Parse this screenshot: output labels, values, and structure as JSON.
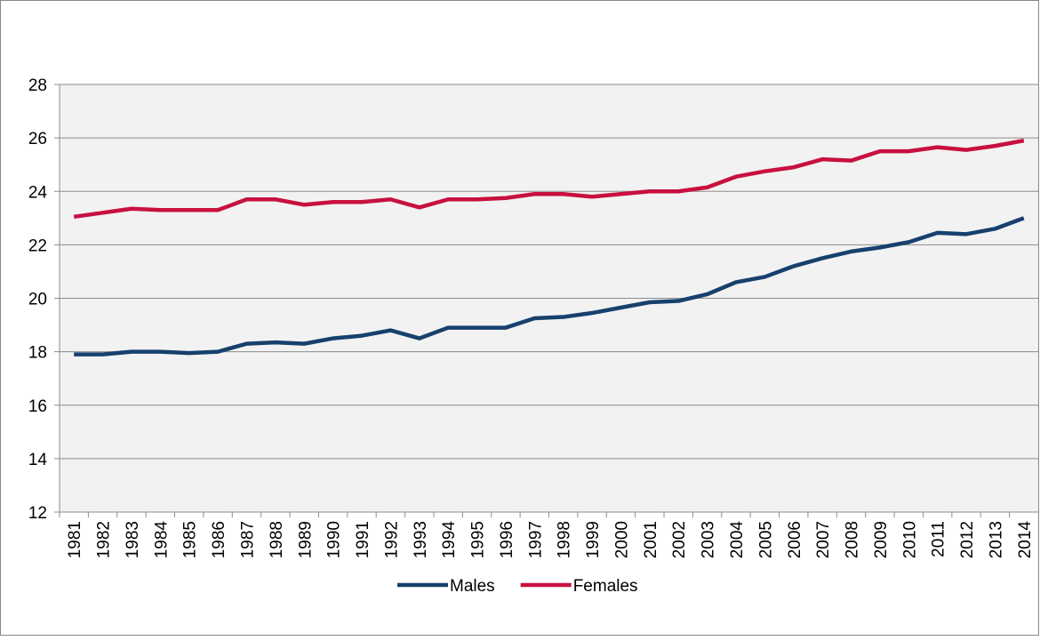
{
  "chart_data": {
    "type": "line",
    "categories": [
      "1981",
      "1982",
      "1983",
      "1984",
      "1985",
      "1986",
      "1987",
      "1988",
      "1989",
      "1990",
      "1991",
      "1992",
      "1993",
      "1994",
      "1995",
      "1996",
      "1997",
      "1998",
      "1999",
      "2000",
      "2001",
      "2002",
      "2003",
      "2004",
      "2005",
      "2006",
      "2007",
      "2008",
      "2009",
      "2010",
      "2011",
      "2012",
      "2013",
      "2014"
    ],
    "series": [
      {
        "name": "Males",
        "color": "#17406d",
        "values": [
          17.9,
          17.9,
          18.0,
          18.0,
          17.95,
          18.0,
          18.3,
          18.35,
          18.3,
          18.5,
          18.6,
          18.8,
          18.5,
          18.9,
          18.9,
          18.9,
          19.25,
          19.3,
          19.45,
          19.65,
          19.85,
          19.9,
          20.15,
          20.6,
          20.8,
          21.2,
          21.5,
          21.75,
          21.9,
          22.1,
          22.45,
          22.4,
          22.6,
          23.0
        ]
      },
      {
        "name": "Females",
        "color": "#c8103e",
        "values": [
          23.05,
          23.2,
          23.35,
          23.3,
          23.3,
          23.3,
          23.7,
          23.7,
          23.5,
          23.6,
          23.6,
          23.7,
          23.4,
          23.7,
          23.7,
          23.75,
          23.9,
          23.9,
          23.8,
          23.9,
          24.0,
          24.0,
          24.15,
          24.55,
          24.75,
          24.9,
          25.2,
          25.15,
          25.5,
          25.5,
          25.65,
          25.55,
          25.7,
          25.9
        ]
      }
    ],
    "ylim": [
      12,
      28
    ],
    "yticks": [
      12,
      14,
      16,
      18,
      20,
      22,
      24,
      26,
      28
    ],
    "grid": true,
    "legend": "bottom"
  }
}
